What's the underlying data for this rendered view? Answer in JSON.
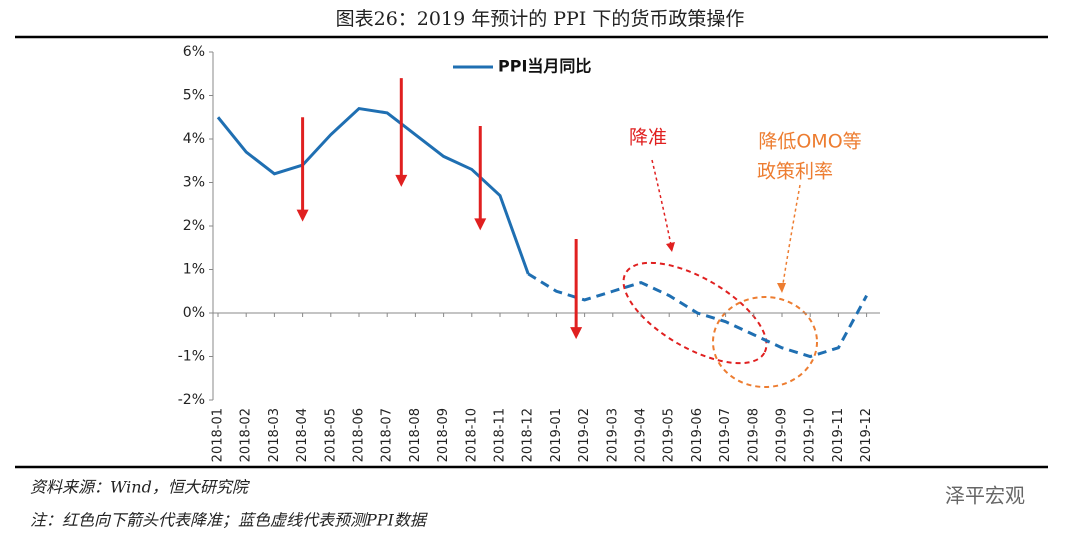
{
  "chart_data": {
    "type": "line",
    "title": "图表26：2019 年预计的 PPI 下的货币政策操作",
    "categories": [
      "2018-01",
      "2018-02",
      "2018-03",
      "2018-04",
      "2018-05",
      "2018-06",
      "2018-07",
      "2018-08",
      "2018-09",
      "2018-10",
      "2018-11",
      "2018-12",
      "2019-01",
      "2019-02",
      "2019-03",
      "2019-04",
      "2019-05",
      "2019-06",
      "2019-07",
      "2019-08",
      "2019-09",
      "2019-10",
      "2019-11",
      "2019-12"
    ],
    "series": [
      {
        "name": "PPI当月同比",
        "color": "#1f6fb2",
        "values": [
          4.5,
          3.7,
          3.2,
          3.4,
          4.1,
          4.7,
          4.6,
          4.1,
          3.6,
          3.3,
          2.7,
          0.9,
          0.5,
          0.3,
          0.5,
          0.7,
          0.4,
          0.0,
          -0.2,
          -0.5,
          -0.8,
          -1.0,
          -0.8,
          0.4
        ],
        "dashed_from": 11
      }
    ],
    "ylim": [
      -2,
      6
    ],
    "yticks": [
      {
        "value": -2,
        "label": "-2%"
      },
      {
        "value": -1,
        "label": "-1%"
      },
      {
        "value": 0,
        "label": "0%"
      },
      {
        "value": 1,
        "label": "1%"
      },
      {
        "value": 2,
        "label": "2%"
      },
      {
        "value": 3,
        "label": "3%"
      },
      {
        "value": 4,
        "label": "4%"
      },
      {
        "value": 5,
        "label": "5%"
      },
      {
        "value": 6,
        "label": "6%"
      }
    ],
    "arrows": {
      "color": "#e02020",
      "items": [
        {
          "x": 3,
          "from": 4.5,
          "to": 2.1
        },
        {
          "x": 6.5,
          "from": 5.4,
          "to": 2.9
        },
        {
          "x": 9.3,
          "from": 4.3,
          "to": 1.9
        },
        {
          "x": 12.7,
          "from": 1.7,
          "to": -0.6
        }
      ]
    },
    "annotations": [
      {
        "text": "降准",
        "color": "#e02020"
      },
      {
        "text": "降低OMO等",
        "color": "#ed7d31"
      },
      {
        "text": "政策利率",
        "color": "#ed7d31"
      }
    ],
    "source": "资料来源：Wind，恒大研究院",
    "note": "注：红色向下箭头代表降准；蓝色虚线代表预测PPI数据",
    "watermark": "泽平宏观"
  }
}
